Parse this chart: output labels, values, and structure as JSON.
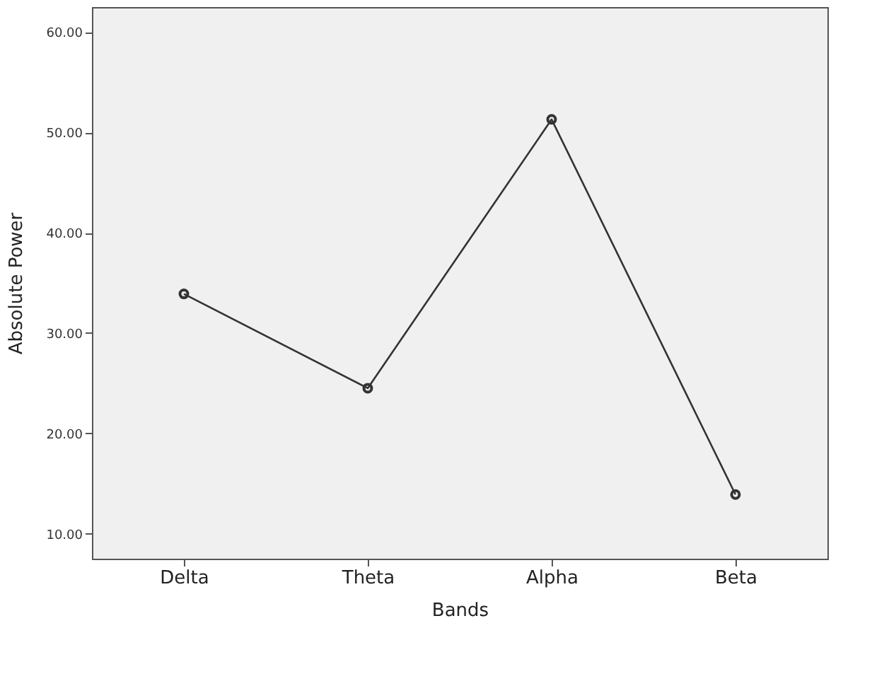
{
  "chart_data": {
    "type": "line",
    "xlabel": "Bands",
    "ylabel": "Absolute Power",
    "categories": [
      "Delta",
      "Theta",
      "Alpha",
      "Beta"
    ],
    "series": [
      {
        "color": "#333333",
        "values": [
          33.9,
          24.5,
          51.3,
          13.9
        ]
      }
    ],
    "ylim": [
      7.5,
      62.5
    ],
    "yticks": [
      {
        "value": 10,
        "label": "10.00"
      },
      {
        "value": 20,
        "label": "20.00"
      },
      {
        "value": 30,
        "label": "30.00"
      },
      {
        "value": 40,
        "label": "40.00"
      },
      {
        "value": 50,
        "label": "50.00"
      },
      {
        "value": 60,
        "label": "60.00"
      }
    ],
    "marker": "circle",
    "line_style": "solid",
    "grid": false
  }
}
